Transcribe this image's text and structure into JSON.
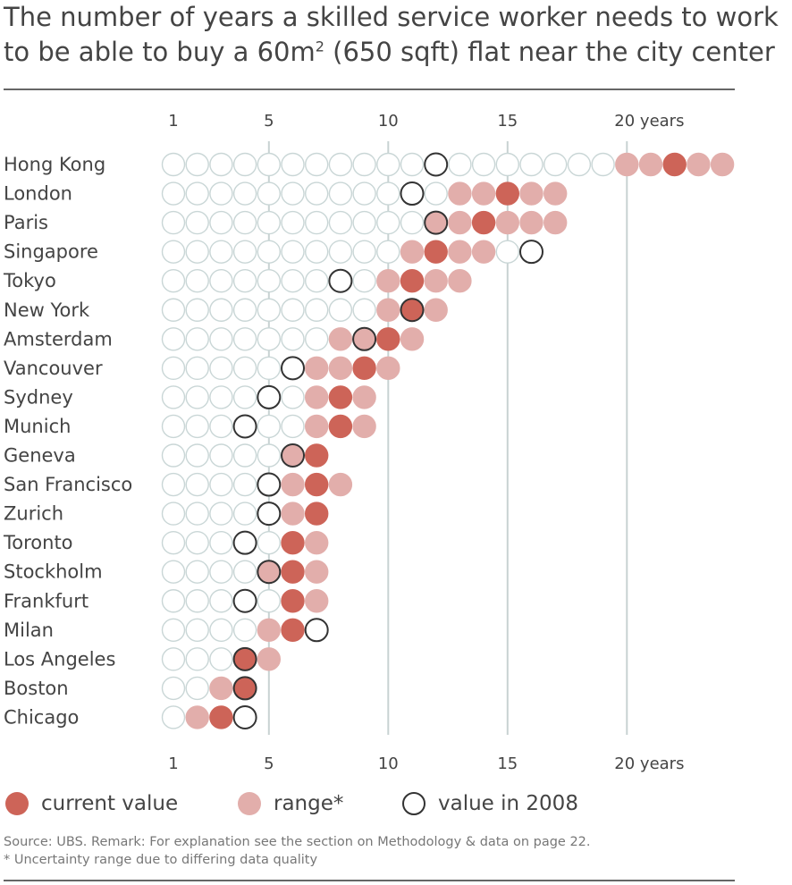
{
  "title": {
    "line1": "The number of years a skilled service worker needs to work",
    "line2_pre": "to be able to buy a 60m",
    "line2_sup": "2",
    "line2_post": " (650 sqft) flat near the city center"
  },
  "legend": {
    "current": "current value",
    "range": "range*",
    "y2008": "value in 2008"
  },
  "source": {
    "line1": "Source: UBS. Remark: For explanation see the section on Methodology & data on page 22.",
    "line2": "* Uncertainty range due to differing data quality"
  },
  "colors": {
    "current": "#cd6458",
    "range": "#e2aeab",
    "empty_stroke": "#c9d6d6",
    "ring_2008": "#333333",
    "gridline": "#c8d2d2",
    "rule": "#666666"
  },
  "chart_data": {
    "type": "dot-plot",
    "x_unit": "years",
    "x_ticks": [
      {
        "value": 1,
        "label": "1"
      },
      {
        "value": 5,
        "label": "5"
      },
      {
        "value": 10,
        "label": "10"
      },
      {
        "value": 15,
        "label": "15"
      },
      {
        "value": 20,
        "label": "20 years"
      }
    ],
    "gridlines": [
      5,
      10,
      15,
      20
    ],
    "xlim": [
      1,
      24
    ],
    "series": [
      {
        "name": "current value"
      },
      {
        "name": "range*"
      },
      {
        "name": "value in 2008"
      }
    ],
    "cities": [
      {
        "city": "Hong Kong",
        "current": 22,
        "range": [
          20,
          24
        ],
        "value_2008": 12
      },
      {
        "city": "London",
        "current": 15,
        "range": [
          13,
          17
        ],
        "value_2008": 11
      },
      {
        "city": "Paris",
        "current": 14,
        "range": [
          12,
          17
        ],
        "value_2008": 12
      },
      {
        "city": "Singapore",
        "current": 12,
        "range": [
          11,
          14
        ],
        "value_2008": 16
      },
      {
        "city": "Tokyo",
        "current": 11,
        "range": [
          10,
          13
        ],
        "value_2008": 8
      },
      {
        "city": "New York",
        "current": 11,
        "range": [
          10,
          12
        ],
        "value_2008": 11
      },
      {
        "city": "Amsterdam",
        "current": 10,
        "range": [
          8,
          11
        ],
        "value_2008": 9
      },
      {
        "city": "Vancouver",
        "current": 9,
        "range": [
          7,
          10
        ],
        "value_2008": 6
      },
      {
        "city": "Sydney",
        "current": 8,
        "range": [
          7,
          9
        ],
        "value_2008": 5
      },
      {
        "city": "Munich",
        "current": 8,
        "range": [
          7,
          9
        ],
        "value_2008": 4
      },
      {
        "city": "Geneva",
        "current": 7,
        "range": [
          6,
          7
        ],
        "value_2008": 6
      },
      {
        "city": "San Francisco",
        "current": 7,
        "range": [
          6,
          8
        ],
        "value_2008": 5
      },
      {
        "city": "Zurich",
        "current": 7,
        "range": [
          6,
          7
        ],
        "value_2008": 5
      },
      {
        "city": "Toronto",
        "current": 6,
        "range": [
          6,
          7
        ],
        "value_2008": 4
      },
      {
        "city": "Stockholm",
        "current": 6,
        "range": [
          5,
          7
        ],
        "value_2008": 5
      },
      {
        "city": "Frankfurt",
        "current": 6,
        "range": [
          6,
          7
        ],
        "value_2008": 4
      },
      {
        "city": "Milan",
        "current": 6,
        "range": [
          5,
          6
        ],
        "value_2008": 7
      },
      {
        "city": "Los Angeles",
        "current": 4,
        "range": [
          4,
          5
        ],
        "value_2008": 4
      },
      {
        "city": "Boston",
        "current": 4,
        "range": [
          3,
          4
        ],
        "value_2008": 4
      },
      {
        "city": "Chicago",
        "current": 3,
        "range": [
          2,
          3
        ],
        "value_2008": 4
      }
    ]
  }
}
